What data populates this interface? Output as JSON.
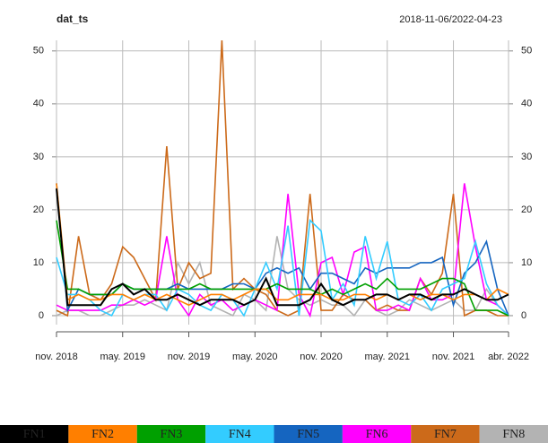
{
  "chart_data": {
    "type": "line",
    "title": "dat_ts",
    "subtitle": "2018-11-06/2022-04-23",
    "x": [
      "2018-11",
      "2018-12",
      "2019-01",
      "2019-02",
      "2019-03",
      "2019-04",
      "2019-05",
      "2019-06",
      "2019-07",
      "2019-08",
      "2019-09",
      "2019-10",
      "2019-11",
      "2019-12",
      "2020-01",
      "2020-02",
      "2020-03",
      "2020-04",
      "2020-05",
      "2020-06",
      "2020-07",
      "2020-08",
      "2020-09",
      "2020-10",
      "2020-11",
      "2020-12",
      "2021-01",
      "2021-02",
      "2021-03",
      "2021-04",
      "2021-05",
      "2021-06",
      "2021-07",
      "2021-08",
      "2021-09",
      "2021-10",
      "2021-11",
      "2021-12",
      "2022-01",
      "2022-02",
      "2022-03",
      "2022-04"
    ],
    "xlim": [
      "2018-11",
      "2022-04"
    ],
    "xticks": [
      {
        "value": "2018-11",
        "label": "nov. 2018"
      },
      {
        "value": "2019-05",
        "label": "may. 2019"
      },
      {
        "value": "2019-11",
        "label": "nov. 2019"
      },
      {
        "value": "2020-05",
        "label": "may. 2020"
      },
      {
        "value": "2020-11",
        "label": "nov. 2020"
      },
      {
        "value": "2021-05",
        "label": "may. 2021"
      },
      {
        "value": "2021-11",
        "label": "nov. 2021"
      },
      {
        "value": "2022-04",
        "label": "abr. 2022"
      }
    ],
    "ylim": [
      -1.7,
      52
    ],
    "yticks": [
      0,
      10,
      20,
      30,
      40,
      50
    ],
    "grid": true,
    "series": [
      {
        "name": "FN1",
        "color": "#000000",
        "values": [
          24,
          2,
          2,
          2,
          2,
          5,
          6,
          4,
          5,
          3,
          3,
          4,
          3,
          2,
          3,
          3,
          3,
          2,
          3,
          7,
          2,
          2,
          2,
          3,
          6,
          3,
          2,
          3,
          3,
          4,
          4,
          3,
          4,
          4,
          3,
          4,
          4,
          5,
          4,
          3,
          3,
          4
        ]
      },
      {
        "name": "FN2",
        "color": "#ff7f00",
        "values": [
          25,
          3,
          4,
          3,
          3,
          4,
          4,
          3,
          4,
          3,
          4,
          3,
          2,
          3,
          4,
          4,
          3,
          4,
          5,
          5,
          3,
          3,
          4,
          4,
          4,
          3,
          3,
          4,
          4,
          3,
          4,
          3,
          4,
          3,
          4,
          4,
          3,
          4,
          4,
          3,
          5,
          4
        ]
      },
      {
        "name": "FN3",
        "color": "#00a000",
        "values": [
          18,
          5,
          5,
          4,
          4,
          4,
          6,
          5,
          5,
          5,
          5,
          5,
          5,
          6,
          5,
          5,
          5,
          5,
          5,
          5,
          6,
          5,
          5,
          5,
          4,
          5,
          4,
          5,
          6,
          5,
          7,
          5,
          5,
          5,
          6,
          7,
          7,
          6,
          1,
          1,
          1,
          0
        ]
      },
      {
        "name": "FN4",
        "color": "#33ccff",
        "values": [
          11,
          4,
          4,
          3,
          1,
          0,
          4,
          3,
          4,
          4,
          1,
          5,
          4,
          2,
          1,
          4,
          3,
          0,
          5,
          10,
          5,
          17,
          0,
          18,
          16,
          3,
          6,
          2,
          15,
          7,
          14,
          3,
          2,
          4,
          1,
          5,
          6,
          7,
          14,
          6,
          2,
          0
        ]
      },
      {
        "name": "FN5",
        "color": "#1565c0",
        "values": [
          25,
          1,
          5,
          4,
          4,
          4,
          6,
          5,
          5,
          5,
          5,
          6,
          5,
          5,
          5,
          5,
          6,
          6,
          5,
          8,
          9,
          8,
          9,
          5,
          8,
          8,
          7,
          6,
          9,
          8,
          9,
          9,
          9,
          10,
          10,
          11,
          2,
          8,
          10,
          14,
          5,
          0
        ]
      },
      {
        "name": "FN6",
        "color": "#ff00ff",
        "values": [
          2,
          1,
          1,
          1,
          1,
          2,
          2,
          3,
          2,
          3,
          15,
          3,
          0,
          4,
          2,
          3,
          1,
          2,
          3,
          2,
          1,
          23,
          4,
          0,
          10,
          11,
          4,
          12,
          13,
          1,
          1,
          2,
          1,
          7,
          3,
          3,
          4,
          25,
          13,
          3,
          2,
          0
        ]
      },
      {
        "name": "FN7",
        "color": "#cc6a1a",
        "values": [
          1,
          0,
          15,
          4,
          3,
          6,
          13,
          11,
          7,
          3,
          32,
          5,
          10,
          7,
          8,
          52,
          5,
          7,
          5,
          4,
          1,
          0,
          1,
          23,
          1,
          1,
          4,
          3,
          3,
          1,
          2,
          1,
          1,
          7,
          4,
          8,
          23,
          0,
          1,
          1,
          0,
          0
        ]
      },
      {
        "name": "FN8",
        "color": "#b3b3b3",
        "values": [
          0,
          1,
          1,
          0,
          0,
          1,
          2,
          2,
          3,
          2,
          1,
          10,
          6,
          10,
          2,
          1,
          0,
          4,
          3,
          1,
          15,
          5,
          3,
          2,
          3,
          2,
          2,
          0,
          3,
          1,
          0,
          1,
          3,
          2,
          1,
          2,
          3,
          1,
          1,
          5,
          2,
          0
        ]
      }
    ]
  }
}
